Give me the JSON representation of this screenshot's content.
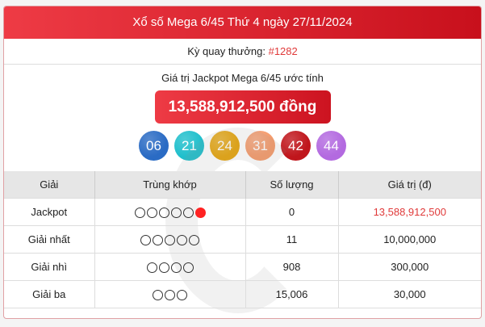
{
  "header": {
    "title": "Xổ số Mega 6/45 Thứ 4 ngày 27/11/2024"
  },
  "draw": {
    "label": "Kỳ quay thưởng:",
    "number": "#1282"
  },
  "jackpot": {
    "label": "Giá trị Jackpot Mega 6/45 ước tính",
    "value": "13,588,912,500 đồng"
  },
  "balls": [
    {
      "n": "06",
      "color": "#2a6bc4"
    },
    {
      "n": "21",
      "color": "#1fbfcc"
    },
    {
      "n": "24",
      "color": "#e6a50c"
    },
    {
      "n": "31",
      "color": "#f59a6a"
    },
    {
      "n": "42",
      "color": "#c0161c"
    },
    {
      "n": "44",
      "color": "#b36ae0"
    }
  ],
  "table": {
    "headers": [
      "Giải",
      "Trùng khớp",
      "Số lượng",
      "Giá trị (đ)"
    ],
    "rows": [
      {
        "prize": "Jackpot",
        "match": 5,
        "special": true,
        "count": "0",
        "value": "13,588,912,500"
      },
      {
        "prize": "Giải nhất",
        "match": 5,
        "special": false,
        "count": "11",
        "value": "10,000,000"
      },
      {
        "prize": "Giải nhì",
        "match": 4,
        "special": false,
        "count": "908",
        "value": "300,000"
      },
      {
        "prize": "Giải ba",
        "match": 3,
        "special": false,
        "count": "15,006",
        "value": "30,000"
      }
    ]
  }
}
